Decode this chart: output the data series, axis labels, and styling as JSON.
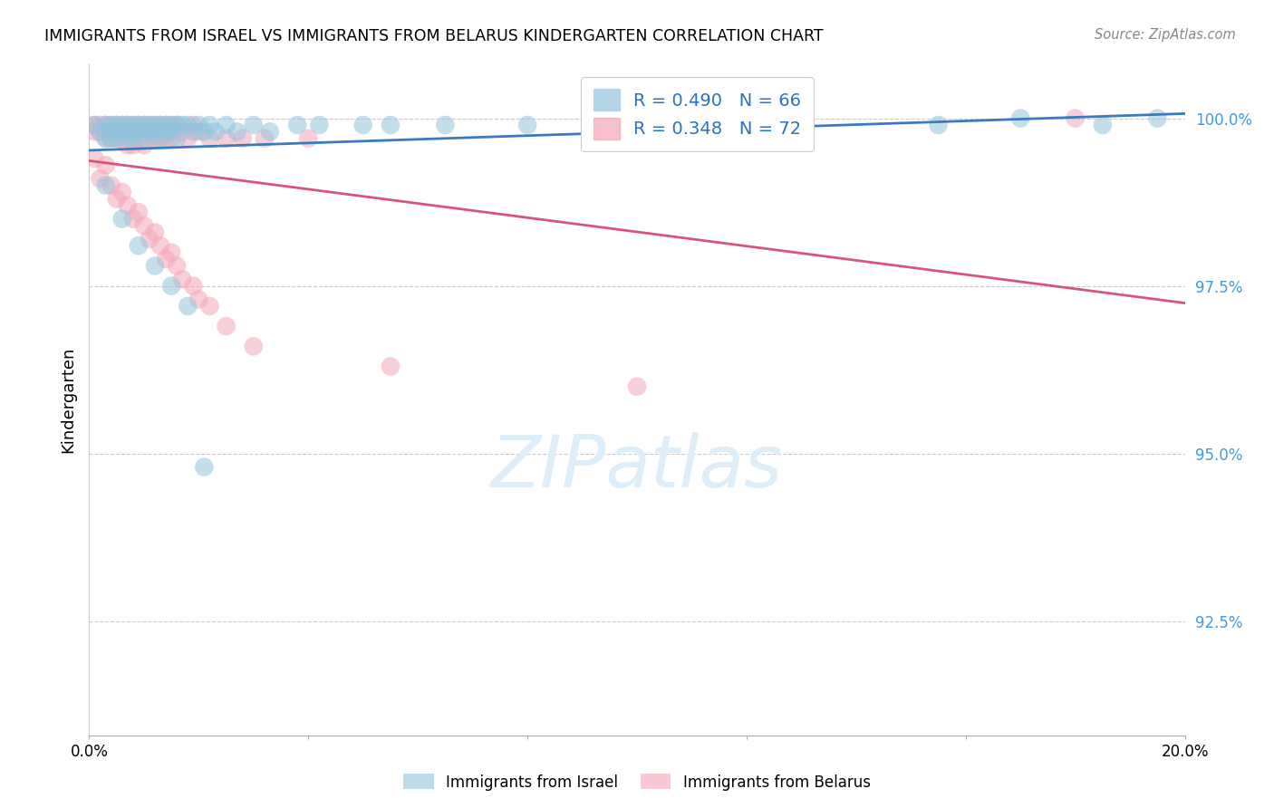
{
  "title": "IMMIGRANTS FROM ISRAEL VS IMMIGRANTS FROM BELARUS KINDERGARTEN CORRELATION CHART",
  "source": "Source: ZipAtlas.com",
  "ylabel": "Kindergarten",
  "ytick_labels": [
    "92.5%",
    "95.0%",
    "97.5%",
    "100.0%"
  ],
  "ytick_values": [
    0.925,
    0.95,
    0.975,
    1.0
  ],
  "xlim": [
    0.0,
    0.2
  ],
  "ylim": [
    0.908,
    1.008
  ],
  "legend_israel": "Immigrants from Israel",
  "legend_belarus": "Immigrants from Belarus",
  "R_israel": 0.49,
  "N_israel": 66,
  "R_belarus": 0.348,
  "N_belarus": 72,
  "color_israel": "#92c5de",
  "color_belarus": "#f4a6b8",
  "line_color_israel": "#3a7bbf",
  "line_color_belarus": "#d9547a",
  "watermark_color": "#ddeef8",
  "israel_x": [
    0.001,
    0.002,
    0.003,
    0.003,
    0.004,
    0.004,
    0.004,
    0.005,
    0.005,
    0.005,
    0.006,
    0.006,
    0.007,
    0.007,
    0.007,
    0.008,
    0.008,
    0.008,
    0.009,
    0.009,
    0.01,
    0.01,
    0.01,
    0.011,
    0.011,
    0.012,
    0.012,
    0.013,
    0.013,
    0.014,
    0.014,
    0.015,
    0.015,
    0.016,
    0.016,
    0.017,
    0.018,
    0.019,
    0.02,
    0.021,
    0.022,
    0.023,
    0.025,
    0.027,
    0.03,
    0.033,
    0.038,
    0.042,
    0.05,
    0.055,
    0.065,
    0.08,
    0.095,
    0.11,
    0.13,
    0.155,
    0.17,
    0.185,
    0.195,
    0.003,
    0.006,
    0.009,
    0.012,
    0.015,
    0.018,
    0.021
  ],
  "israel_y": [
    0.999,
    0.998,
    0.999,
    0.997,
    0.999,
    0.998,
    0.997,
    0.999,
    0.998,
    0.997,
    0.999,
    0.998,
    0.999,
    0.998,
    0.997,
    0.999,
    0.998,
    0.997,
    0.999,
    0.998,
    0.999,
    0.998,
    0.997,
    0.999,
    0.998,
    0.999,
    0.998,
    0.999,
    0.997,
    0.999,
    0.998,
    0.999,
    0.998,
    0.999,
    0.997,
    0.999,
    0.999,
    0.998,
    0.999,
    0.998,
    0.999,
    0.998,
    0.999,
    0.998,
    0.999,
    0.998,
    0.999,
    0.999,
    0.999,
    0.999,
    0.999,
    0.999,
    0.999,
    0.999,
    1.0,
    0.999,
    1.0,
    0.999,
    1.0,
    0.99,
    0.985,
    0.981,
    0.978,
    0.975,
    0.972,
    0.948
  ],
  "belarus_x": [
    0.001,
    0.001,
    0.002,
    0.002,
    0.003,
    0.003,
    0.003,
    0.004,
    0.004,
    0.004,
    0.005,
    0.005,
    0.005,
    0.006,
    0.006,
    0.006,
    0.007,
    0.007,
    0.007,
    0.008,
    0.008,
    0.008,
    0.009,
    0.009,
    0.01,
    0.01,
    0.01,
    0.011,
    0.011,
    0.012,
    0.012,
    0.013,
    0.013,
    0.014,
    0.014,
    0.015,
    0.015,
    0.016,
    0.017,
    0.018,
    0.019,
    0.02,
    0.022,
    0.025,
    0.028,
    0.032,
    0.04,
    0.002,
    0.005,
    0.008,
    0.011,
    0.014,
    0.017,
    0.02,
    0.003,
    0.006,
    0.009,
    0.012,
    0.015,
    0.001,
    0.004,
    0.007,
    0.01,
    0.013,
    0.016,
    0.019,
    0.022,
    0.025,
    0.03,
    0.055,
    0.1,
    0.18
  ],
  "belarus_y": [
    0.999,
    0.998,
    0.999,
    0.998,
    0.999,
    0.998,
    0.997,
    0.999,
    0.998,
    0.997,
    0.999,
    0.998,
    0.997,
    0.999,
    0.998,
    0.997,
    0.999,
    0.998,
    0.996,
    0.999,
    0.998,
    0.996,
    0.999,
    0.997,
    0.999,
    0.998,
    0.996,
    0.999,
    0.997,
    0.999,
    0.997,
    0.999,
    0.997,
    0.999,
    0.997,
    0.999,
    0.997,
    0.999,
    0.998,
    0.997,
    0.999,
    0.998,
    0.997,
    0.997,
    0.997,
    0.997,
    0.997,
    0.991,
    0.988,
    0.985,
    0.982,
    0.979,
    0.976,
    0.973,
    0.993,
    0.989,
    0.986,
    0.983,
    0.98,
    0.994,
    0.99,
    0.987,
    0.984,
    0.981,
    0.978,
    0.975,
    0.972,
    0.969,
    0.966,
    0.963,
    0.96,
    1.0
  ]
}
